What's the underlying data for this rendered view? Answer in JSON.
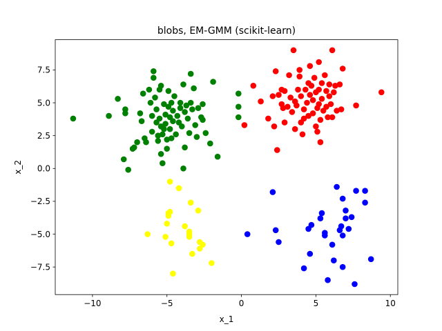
{
  "chart_data": {
    "type": "scatter",
    "title": "blobs, EM-GMM (scikit-learn)",
    "xlabel": "x_1",
    "ylabel": "x_2",
    "xlim": [
      -12.5,
      10.5
    ],
    "ylim": [
      -9.6,
      9.8
    ],
    "xticks": [
      -10,
      -5,
      0,
      5,
      10
    ],
    "xtick_labels": [
      "−10",
      "−5",
      "0",
      "5",
      "10"
    ],
    "yticks": [
      -7.5,
      -5.0,
      -2.5,
      0.0,
      2.5,
      5.0,
      7.5
    ],
    "ytick_labels": [
      "−7.5",
      "−5.0",
      "−2.5",
      "0.0",
      "2.5",
      "5.0",
      "7.5"
    ],
    "grid": false,
    "series": [
      {
        "color": "#008000",
        "points": [
          [
            -11.3,
            3.8
          ],
          [
            -8.9,
            4.0
          ],
          [
            -8.3,
            5.3
          ],
          [
            -7.8,
            4.2
          ],
          [
            -7.8,
            4.5
          ],
          [
            -7.9,
            0.7
          ],
          [
            -7.6,
            -0.1
          ],
          [
            -7.3,
            1.5
          ],
          [
            -7.2,
            1.6
          ],
          [
            -7.0,
            2.0
          ],
          [
            -6.8,
            4.2
          ],
          [
            -6.7,
            3.6
          ],
          [
            -6.6,
            5.7
          ],
          [
            -6.5,
            2.3
          ],
          [
            -6.4,
            2.0
          ],
          [
            -6.2,
            6.0
          ],
          [
            -6.1,
            5.0
          ],
          [
            -6.0,
            4.0
          ],
          [
            -6.0,
            2.8
          ],
          [
            -5.9,
            7.4
          ],
          [
            -5.9,
            6.9
          ],
          [
            -5.8,
            5.4
          ],
          [
            -5.7,
            4.5
          ],
          [
            -5.7,
            3.5
          ],
          [
            -5.6,
            2.5
          ],
          [
            -5.6,
            2.1
          ],
          [
            -5.5,
            6.0
          ],
          [
            -5.5,
            3.8
          ],
          [
            -5.4,
            6.3
          ],
          [
            -5.4,
            3.2
          ],
          [
            -5.4,
            1.1
          ],
          [
            -5.3,
            0.4
          ],
          [
            -5.3,
            2.6
          ],
          [
            -5.2,
            4.9
          ],
          [
            -5.2,
            3.0
          ],
          [
            -5.1,
            4.1
          ],
          [
            -5.1,
            3.4
          ],
          [
            -5.0,
            2.2
          ],
          [
            -5.0,
            1.5
          ],
          [
            -4.9,
            5.9
          ],
          [
            -4.9,
            4.7
          ],
          [
            -4.8,
            3.9
          ],
          [
            -4.8,
            3.0
          ],
          [
            -4.7,
            5.0
          ],
          [
            -4.7,
            2.3
          ],
          [
            -4.6,
            4.4
          ],
          [
            -4.6,
            3.6
          ],
          [
            -4.5,
            5.5
          ],
          [
            -4.4,
            2.6
          ],
          [
            -4.3,
            4.0
          ],
          [
            -4.2,
            3.5
          ],
          [
            -4.1,
            5.0
          ],
          [
            -4.1,
            4.6
          ],
          [
            -4.0,
            3.2
          ],
          [
            -3.9,
            0.0
          ],
          [
            -3.9,
            6.4
          ],
          [
            -3.8,
            4.3
          ],
          [
            -3.8,
            1.6
          ],
          [
            -3.7,
            4.8
          ],
          [
            -3.6,
            3.8
          ],
          [
            -3.5,
            2.7
          ],
          [
            -3.4,
            7.2
          ],
          [
            -3.4,
            5.0
          ],
          [
            -3.3,
            4.5
          ],
          [
            -3.2,
            6.1
          ],
          [
            -3.1,
            3.3
          ],
          [
            -3.0,
            2.4
          ],
          [
            -2.9,
            4.6
          ],
          [
            -2.7,
            3.9
          ],
          [
            -2.6,
            4.9
          ],
          [
            -2.6,
            3.7
          ],
          [
            -2.4,
            2.7
          ],
          [
            -2.1,
            1.9
          ],
          [
            -1.9,
            6.6
          ],
          [
            -1.6,
            0.9
          ],
          [
            -0.2,
            5.7
          ],
          [
            -0.2,
            4.7
          ],
          [
            -0.2,
            3.9
          ]
        ]
      },
      {
        "color": "#ff0000",
        "points": [
          [
            0.2,
            3.3
          ],
          [
            0.8,
            6.3
          ],
          [
            1.3,
            5.1
          ],
          [
            1.8,
            3.8
          ],
          [
            2.1,
            5.5
          ],
          [
            2.2,
            3.2
          ],
          [
            2.3,
            7.4
          ],
          [
            2.4,
            1.4
          ],
          [
            2.5,
            5.6
          ],
          [
            2.7,
            4.9
          ],
          [
            2.7,
            6.0
          ],
          [
            2.8,
            4.6
          ],
          [
            2.9,
            5.9
          ],
          [
            2.9,
            3.5
          ],
          [
            3.1,
            4.7
          ],
          [
            3.2,
            7.1
          ],
          [
            3.3,
            5.4
          ],
          [
            3.4,
            4.3
          ],
          [
            3.5,
            9.0
          ],
          [
            3.6,
            5.1
          ],
          [
            3.6,
            3.0
          ],
          [
            3.7,
            4.8
          ],
          [
            3.8,
            6.0
          ],
          [
            3.9,
            7.5
          ],
          [
            3.9,
            7.0
          ],
          [
            4.0,
            5.5
          ],
          [
            4.0,
            3.5
          ],
          [
            4.1,
            2.6
          ],
          [
            4.2,
            4.5
          ],
          [
            4.2,
            3.8
          ],
          [
            4.3,
            6.0
          ],
          [
            4.4,
            5.0
          ],
          [
            4.5,
            6.5
          ],
          [
            4.5,
            4.0
          ],
          [
            4.6,
            7.8
          ],
          [
            4.6,
            5.6
          ],
          [
            4.7,
            6.3
          ],
          [
            4.8,
            5.2
          ],
          [
            4.8,
            4.2
          ],
          [
            4.9,
            6.9
          ],
          [
            5.0,
            5.8
          ],
          [
            5.0,
            3.2
          ],
          [
            5.1,
            4.6
          ],
          [
            5.1,
            2.8
          ],
          [
            5.2,
            8.1
          ],
          [
            5.2,
            6.0
          ],
          [
            5.2,
            4.9
          ],
          [
            5.3,
            3.7
          ],
          [
            5.3,
            2.0
          ],
          [
            5.4,
            6.5
          ],
          [
            5.4,
            5.3
          ],
          [
            5.5,
            4.4
          ],
          [
            5.6,
            7.1
          ],
          [
            5.7,
            5.9
          ],
          [
            5.7,
            4.7
          ],
          [
            5.8,
            3.9
          ],
          [
            5.9,
            6.4
          ],
          [
            5.9,
            5.5
          ],
          [
            6.0,
            4.9
          ],
          [
            6.1,
            9.0
          ],
          [
            6.1,
            3.9
          ],
          [
            6.2,
            5.8
          ],
          [
            6.3,
            6.3
          ],
          [
            6.4,
            4.4
          ],
          [
            6.6,
            6.4
          ],
          [
            6.7,
            4.5
          ],
          [
            6.8,
            7.6
          ],
          [
            7.7,
            4.8
          ],
          [
            9.4,
            5.8
          ]
        ]
      },
      {
        "color": "#ffff00",
        "points": [
          [
            -6.3,
            -5.0
          ],
          [
            -5.1,
            -5.2
          ],
          [
            -5.0,
            -4.2
          ],
          [
            -4.9,
            -3.6
          ],
          [
            -4.9,
            -3.4
          ],
          [
            -4.8,
            -3.3
          ],
          [
            -4.8,
            -1.0
          ],
          [
            -4.7,
            -5.7
          ],
          [
            -4.6,
            -8.0
          ],
          [
            -4.2,
            -1.5
          ],
          [
            -3.8,
            -4.4
          ],
          [
            -3.5,
            -4.8
          ],
          [
            -3.5,
            -5.0
          ],
          [
            -3.5,
            -5.2
          ],
          [
            -3.4,
            -2.6
          ],
          [
            -3.3,
            -6.5
          ],
          [
            -2.9,
            -3.2
          ],
          [
            -2.8,
            -6.1
          ],
          [
            -2.8,
            -5.6
          ],
          [
            -2.6,
            -5.8
          ],
          [
            -2.0,
            -7.2
          ]
        ]
      },
      {
        "color": "#0000ff",
        "points": [
          [
            0.4,
            -5.0
          ],
          [
            2.1,
            -1.8
          ],
          [
            2.3,
            -4.7
          ],
          [
            2.5,
            -5.6
          ],
          [
            4.2,
            -7.6
          ],
          [
            4.5,
            -4.6
          ],
          [
            4.6,
            -6.5
          ],
          [
            4.7,
            -4.3
          ],
          [
            5.3,
            -3.8
          ],
          [
            5.4,
            -3.4
          ],
          [
            5.6,
            -5.1
          ],
          [
            5.6,
            -4.9
          ],
          [
            5.8,
            -8.5
          ],
          [
            6.1,
            -5.8
          ],
          [
            6.2,
            -7.0
          ],
          [
            6.4,
            -1.4
          ],
          [
            6.6,
            -4.7
          ],
          [
            6.7,
            -4.4
          ],
          [
            6.8,
            -5.1
          ],
          [
            6.8,
            -7.5
          ],
          [
            6.8,
            -2.3
          ],
          [
            7.0,
            -3.2
          ],
          [
            7.0,
            -3.8
          ],
          [
            7.2,
            -4.6
          ],
          [
            7.4,
            -3.7
          ],
          [
            7.6,
            -8.8
          ],
          [
            7.7,
            -1.7
          ],
          [
            8.3,
            -1.7
          ],
          [
            8.3,
            -2.6
          ],
          [
            8.7,
            -6.9
          ]
        ]
      }
    ]
  }
}
